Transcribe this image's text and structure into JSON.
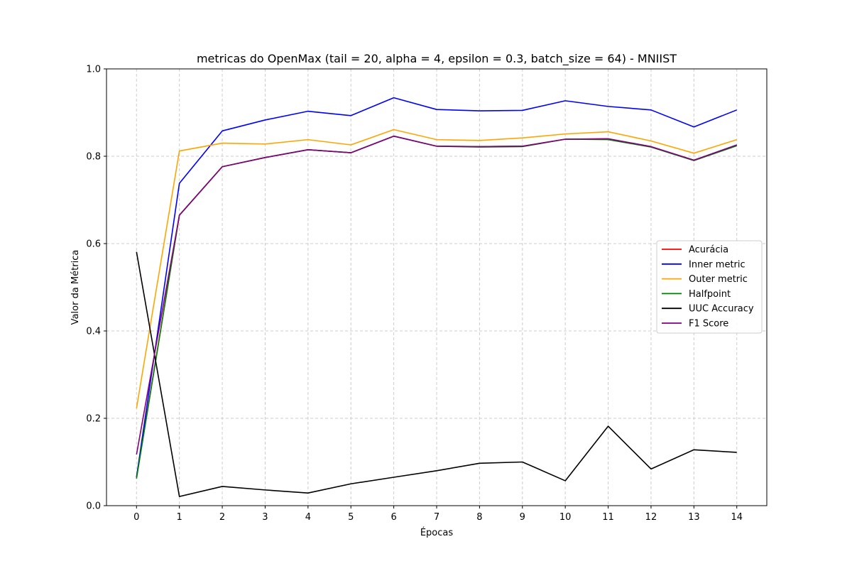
{
  "chart_data": {
    "type": "line",
    "title": "metricas do OpenMax (tail = 20, alpha = 4, epsilon = 0.3, batch_size = 64) - MNIIST",
    "xlabel": "Épocas",
    "ylabel": "Valor da Métrica",
    "x": [
      0,
      1,
      2,
      3,
      4,
      5,
      6,
      7,
      8,
      9,
      10,
      11,
      12,
      13,
      14
    ],
    "xticks": [
      "0",
      "1",
      "2",
      "3",
      "4",
      "5",
      "6",
      "7",
      "8",
      "9",
      "10",
      "11",
      "12",
      "13",
      "14"
    ],
    "xlim": [
      -0.7,
      14.7
    ],
    "ylim": [
      0.0,
      1.0
    ],
    "yticks": [
      "0.0",
      "0.2",
      "0.4",
      "0.6",
      "0.8",
      "1.0"
    ],
    "grid": true,
    "grid_style": "dashed",
    "legend_position": "center-right",
    "series": [
      {
        "name": "Acurácia",
        "color": "#ff0000",
        "values": [
          0.065,
          0.665,
          0.776,
          0.797,
          0.815,
          0.808,
          0.846,
          0.823,
          0.822,
          0.823,
          0.839,
          0.84,
          0.822,
          0.791,
          0.825
        ]
      },
      {
        "name": "Inner metric",
        "color": "#0000ff",
        "values": [
          0.065,
          0.738,
          0.858,
          0.883,
          0.903,
          0.893,
          0.934,
          0.907,
          0.904,
          0.905,
          0.927,
          0.914,
          0.906,
          0.867,
          0.906
        ]
      },
      {
        "name": "Outer metric",
        "color": "#ffa500",
        "values": [
          0.223,
          0.812,
          0.83,
          0.828,
          0.838,
          0.826,
          0.861,
          0.838,
          0.836,
          0.842,
          0.851,
          0.856,
          0.835,
          0.807,
          0.838
        ]
      },
      {
        "name": "Halfpoint",
        "color": "#008000",
        "values": [
          0.062,
          0.665,
          0.776,
          0.797,
          0.815,
          0.808,
          0.846,
          0.823,
          0.821,
          0.822,
          0.839,
          0.838,
          0.821,
          0.79,
          0.824
        ]
      },
      {
        "name": "UUC Accuracy",
        "color": "#000000",
        "values": [
          0.581,
          0.021,
          0.044,
          0.036,
          0.029,
          0.05,
          0.065,
          0.08,
          0.097,
          0.1,
          0.057,
          0.182,
          0.084,
          0.128,
          0.122
        ]
      },
      {
        "name": "F1 Score",
        "color": "#800080",
        "values": [
          0.117,
          0.665,
          0.776,
          0.797,
          0.815,
          0.808,
          0.846,
          0.823,
          0.822,
          0.823,
          0.839,
          0.84,
          0.822,
          0.791,
          0.826
        ]
      }
    ]
  }
}
